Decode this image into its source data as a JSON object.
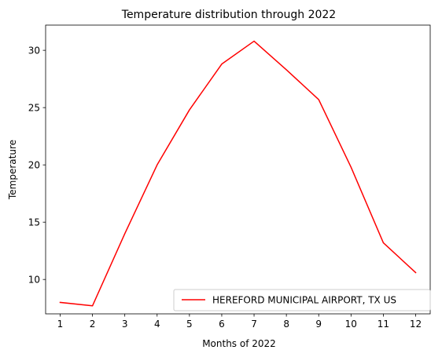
{
  "chart_data": {
    "type": "line",
    "title": "Temperature distribution through 2022",
    "xlabel": "Months of 2022",
    "ylabel": "Temperature",
    "x": [
      1,
      2,
      3,
      4,
      5,
      6,
      7,
      8,
      9,
      10,
      11,
      12
    ],
    "xticks": [
      1,
      2,
      3,
      4,
      5,
      6,
      7,
      8,
      9,
      10,
      11,
      12
    ],
    "yticks": [
      10,
      15,
      20,
      25,
      30
    ],
    "xlim": [
      0.55,
      12.45
    ],
    "ylim": [
      7.0,
      32.2
    ],
    "grid": false,
    "legend_position": "lower right",
    "series": [
      {
        "name": "HEREFORD MUNICIPAL AIRPORT, TX US",
        "color": "#ff0000",
        "values": [
          8.0,
          7.7,
          14.0,
          20.0,
          24.8,
          28.8,
          30.8,
          28.3,
          25.7,
          19.8,
          13.2,
          10.6
        ]
      }
    ]
  }
}
